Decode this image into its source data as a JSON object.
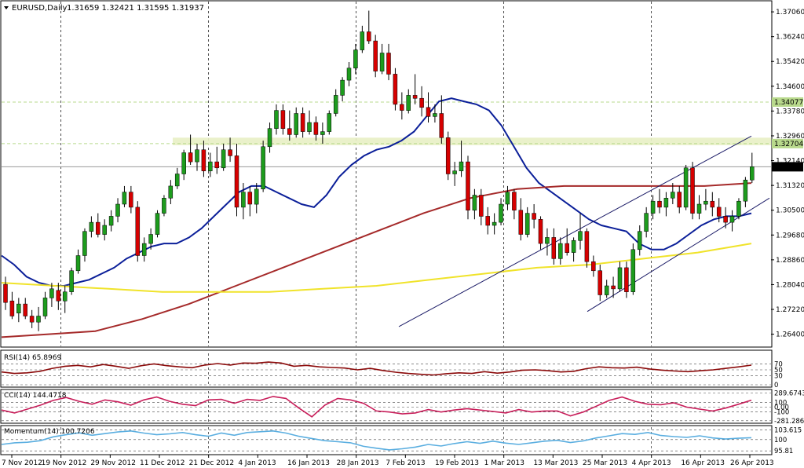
{
  "window": {
    "symbol_caption": "EURUSD,Daily",
    "ohlc_caption": "1.31659 1.32421 1.31595 1.31937"
  },
  "chart_data": [
    {
      "type": "candlestick",
      "title": "EURUSD,Daily",
      "ohlc": {
        "open": 1.31659,
        "high": 1.32421,
        "low": 1.31595,
        "close": 1.31937
      },
      "ylim": [
        1.26,
        1.374
      ],
      "y_ticks": [
        "1.37060",
        "1.36240",
        "1.35420",
        "1.34600",
        "1.33780",
        "1.32960",
        "1.32140",
        "1.31320",
        "1.30500",
        "1.29680",
        "1.28860",
        "1.28040",
        "1.27220",
        "1.26400"
      ],
      "x_ticks": [
        "7 Nov 2012",
        "19 Nov 2012",
        "29 Nov 2012",
        "11 Dec 2012",
        "21 Dec 2012",
        "4 Jan 2013",
        "16 Jan 2013",
        "28 Jan 2013",
        "7 Feb 2013",
        "19 Feb 2013",
        "1 Mar 2013",
        "13 Mar 2013",
        "25 Mar 2013",
        "4 Apr 2013",
        "16 Apr 2013",
        "26 Apr 2013"
      ],
      "price_labels": [
        {
          "text": "1.34077",
          "value": 1.34077,
          "color": "#b8d98c"
        },
        {
          "text": "1.32704",
          "value": 1.32704,
          "color": "#b8d98c"
        },
        {
          "text": "1.31937",
          "value": 1.31937,
          "color": "#000000"
        }
      ],
      "support_resistance_zone": [
        1.3265,
        1.329
      ],
      "candles": [
        [
          1.2805,
          1.283,
          1.272,
          1.2745
        ],
        [
          1.275,
          1.278,
          1.269,
          1.27
        ],
        [
          1.271,
          1.276,
          1.268,
          1.274
        ],
        [
          1.274,
          1.276,
          1.269,
          1.27
        ],
        [
          1.27,
          1.272,
          1.266,
          1.268
        ],
        [
          1.268,
          1.273,
          1.265,
          1.27
        ],
        [
          1.27,
          1.278,
          1.269,
          1.276
        ],
        [
          1.276,
          1.281,
          1.273,
          1.279
        ],
        [
          1.2785,
          1.281,
          1.272,
          1.275
        ],
        [
          1.275,
          1.28,
          1.271,
          1.278
        ],
        [
          1.278,
          1.286,
          1.277,
          1.285
        ],
        [
          1.285,
          1.292,
          1.284,
          1.29
        ],
        [
          1.29,
          1.299,
          1.288,
          1.298
        ],
        [
          1.298,
          1.303,
          1.296,
          1.301
        ],
        [
          1.301,
          1.304,
          1.296,
          1.297
        ],
        [
          1.297,
          1.302,
          1.295,
          1.3
        ],
        [
          1.3,
          1.305,
          1.298,
          1.303
        ],
        [
          1.303,
          1.309,
          1.301,
          1.307
        ],
        [
          1.307,
          1.313,
          1.306,
          1.311
        ],
        [
          1.311,
          1.313,
          1.304,
          1.306
        ],
        [
          1.306,
          1.308,
          1.288,
          1.29
        ],
        [
          1.29,
          1.296,
          1.288,
          1.294
        ],
        [
          1.294,
          1.299,
          1.292,
          1.297
        ],
        [
          1.297,
          1.305,
          1.296,
          1.304
        ],
        [
          1.304,
          1.31,
          1.303,
          1.309
        ],
        [
          1.309,
          1.315,
          1.307,
          1.313
        ],
        [
          1.313,
          1.319,
          1.312,
          1.317
        ],
        [
          1.317,
          1.325,
          1.315,
          1.324
        ],
        [
          1.324,
          1.33,
          1.32,
          1.321
        ],
        [
          1.321,
          1.327,
          1.318,
          1.325
        ],
        [
          1.325,
          1.328,
          1.316,
          1.318
        ],
        [
          1.318,
          1.324,
          1.316,
          1.321
        ],
        [
          1.321,
          1.326,
          1.317,
          1.319
        ],
        [
          1.319,
          1.327,
          1.318,
          1.325
        ],
        [
          1.325,
          1.329,
          1.321,
          1.323
        ],
        [
          1.323,
          1.327,
          1.303,
          1.306
        ],
        [
          1.306,
          1.314,
          1.302,
          1.311
        ],
        [
          1.311,
          1.313,
          1.303,
          1.307
        ],
        [
          1.307,
          1.314,
          1.304,
          1.312
        ],
        [
          1.312,
          1.328,
          1.311,
          1.326
        ],
        [
          1.326,
          1.334,
          1.324,
          1.332
        ],
        [
          1.332,
          1.34,
          1.33,
          1.338
        ],
        [
          1.338,
          1.34,
          1.33,
          1.332
        ],
        [
          1.332,
          1.338,
          1.328,
          1.33
        ],
        [
          1.33,
          1.339,
          1.329,
          1.337
        ],
        [
          1.337,
          1.339,
          1.329,
          1.331
        ],
        [
          1.331,
          1.338,
          1.33,
          1.334
        ],
        [
          1.334,
          1.336,
          1.328,
          1.33
        ],
        [
          1.33,
          1.334,
          1.327,
          1.331
        ],
        [
          1.331,
          1.338,
          1.33,
          1.337
        ],
        [
          1.337,
          1.345,
          1.336,
          1.343
        ],
        [
          1.343,
          1.349,
          1.341,
          1.348
        ],
        [
          1.348,
          1.354,
          1.346,
          1.352
        ],
        [
          1.352,
          1.36,
          1.35,
          1.358
        ],
        [
          1.358,
          1.366,
          1.357,
          1.364
        ],
        [
          1.364,
          1.371,
          1.36,
          1.361
        ],
        [
          1.361,
          1.363,
          1.349,
          1.351
        ],
        [
          1.351,
          1.36,
          1.35,
          1.357
        ],
        [
          1.357,
          1.36,
          1.348,
          1.35
        ],
        [
          1.35,
          1.352,
          1.338,
          1.34
        ],
        [
          1.34,
          1.344,
          1.335,
          1.338
        ],
        [
          1.338,
          1.345,
          1.337,
          1.343
        ],
        [
          1.343,
          1.35,
          1.34,
          1.342
        ],
        [
          1.342,
          1.346,
          1.336,
          1.339
        ],
        [
          1.339,
          1.344,
          1.334,
          1.336
        ],
        [
          1.336,
          1.34,
          1.334,
          1.337
        ],
        [
          1.337,
          1.343,
          1.327,
          1.329
        ],
        [
          1.329,
          1.331,
          1.315,
          1.317
        ],
        [
          1.317,
          1.321,
          1.313,
          1.318
        ],
        [
          1.318,
          1.328,
          1.316,
          1.321
        ],
        [
          1.321,
          1.323,
          1.302,
          1.305
        ],
        [
          1.305,
          1.312,
          1.302,
          1.31
        ],
        [
          1.31,
          1.312,
          1.3,
          1.303
        ],
        [
          1.303,
          1.306,
          1.297,
          1.3
        ],
        [
          1.3,
          1.304,
          1.297,
          1.301
        ],
        [
          1.301,
          1.309,
          1.3,
          1.307
        ],
        [
          1.307,
          1.313,
          1.305,
          1.311
        ],
        [
          1.311,
          1.312,
          1.302,
          1.305
        ],
        [
          1.305,
          1.309,
          1.295,
          1.297
        ],
        [
          1.297,
          1.306,
          1.296,
          1.304
        ],
        [
          1.304,
          1.307,
          1.299,
          1.302
        ],
        [
          1.302,
          1.303,
          1.292,
          1.294
        ],
        [
          1.294,
          1.299,
          1.29,
          1.296
        ],
        [
          1.296,
          1.299,
          1.287,
          1.289
        ],
        [
          1.289,
          1.296,
          1.287,
          1.294
        ],
        [
          1.294,
          1.299,
          1.29,
          1.291
        ],
        [
          1.291,
          1.296,
          1.288,
          1.295
        ],
        [
          1.295,
          1.304,
          1.292,
          1.298
        ],
        [
          1.298,
          1.299,
          1.286,
          1.288
        ],
        [
          1.288,
          1.29,
          1.283,
          1.285
        ],
        [
          1.285,
          1.287,
          1.275,
          1.277
        ],
        [
          1.277,
          1.282,
          1.276,
          1.28
        ],
        [
          1.28,
          1.283,
          1.276,
          1.279
        ],
        [
          1.279,
          1.288,
          1.278,
          1.286
        ],
        [
          1.286,
          1.288,
          1.276,
          1.278
        ],
        [
          1.278,
          1.294,
          1.277,
          1.292
        ],
        [
          1.292,
          1.3,
          1.29,
          1.298
        ],
        [
          1.298,
          1.306,
          1.296,
          1.304
        ],
        [
          1.304,
          1.31,
          1.302,
          1.308
        ],
        [
          1.308,
          1.312,
          1.304,
          1.306
        ],
        [
          1.306,
          1.311,
          1.303,
          1.309
        ],
        [
          1.309,
          1.314,
          1.307,
          1.311
        ],
        [
          1.311,
          1.313,
          1.304,
          1.306
        ],
        [
          1.306,
          1.32,
          1.305,
          1.319
        ],
        [
          1.319,
          1.321,
          1.302,
          1.304
        ],
        [
          1.304,
          1.31,
          1.302,
          1.307
        ],
        [
          1.307,
          1.312,
          1.305,
          1.308
        ],
        [
          1.308,
          1.311,
          1.303,
          1.306
        ],
        [
          1.306,
          1.309,
          1.301,
          1.303
        ],
        [
          1.303,
          1.306,
          1.299,
          1.301
        ],
        [
          1.301,
          1.305,
          1.298,
          1.303
        ],
        [
          1.303,
          1.309,
          1.302,
          1.308
        ],
        [
          1.308,
          1.316,
          1.306,
          1.315
        ],
        [
          1.315,
          1.324,
          1.314,
          1.3194
        ]
      ],
      "moving_averages": [
        {
          "color": "#0b1f99",
          "from": 1.29,
          "path": [
            1.29,
            1.287,
            1.283,
            1.281,
            1.28,
            1.28,
            1.281,
            1.282,
            1.284,
            1.286,
            1.289,
            1.291,
            1.293,
            1.294,
            1.294,
            1.296,
            1.299,
            1.303,
            1.307,
            1.311,
            1.313,
            1.313,
            1.311,
            1.309,
            1.307,
            1.306,
            1.31,
            1.316,
            1.32,
            1.323,
            1.325,
            1.326,
            1.328,
            1.331,
            1.336,
            1.341,
            1.342,
            1.341,
            1.34,
            1.338,
            1.333,
            1.326,
            1.319,
            1.314,
            1.311,
            1.308,
            1.305,
            1.302,
            1.3,
            1.299,
            1.298,
            1.294,
            1.292,
            1.292,
            1.294,
            1.297,
            1.3,
            1.302,
            1.303,
            1.303,
            1.304
          ]
        },
        {
          "color": "#a52a2a",
          "path": [
            1.263,
            1.264,
            1.265,
            1.269,
            1.274,
            1.28,
            1.286,
            1.292,
            1.298,
            1.304,
            1.309,
            1.312,
            1.313,
            1.313,
            1.313,
            1.313,
            1.314
          ]
        },
        {
          "color": "#f0e32a",
          "path": [
            1.281,
            1.28,
            1.279,
            1.278,
            1.278,
            1.278,
            1.279,
            1.28,
            1.282,
            1.284,
            1.286,
            1.287,
            1.289,
            1.291,
            1.294
          ]
        }
      ]
    },
    {
      "type": "line",
      "title": "RSI(14) 65.8969",
      "ylim": [
        0,
        100
      ],
      "levels": [
        "70",
        "50",
        "30",
        "0"
      ],
      "series": [
        {
          "name": "RSI(14)",
          "color": "#8b0a0a",
          "values": [
            43,
            38,
            40,
            45,
            55,
            62,
            65,
            60,
            68,
            62,
            55,
            64,
            70,
            64,
            60,
            57,
            66,
            71,
            66,
            73,
            72,
            76,
            73,
            62,
            65,
            60,
            58,
            56,
            50,
            55,
            48,
            42,
            38,
            35,
            33,
            37,
            40,
            38,
            44,
            39,
            43,
            49,
            50,
            47,
            43,
            45,
            54,
            60,
            57,
            56,
            59,
            53,
            49,
            46,
            44,
            47,
            50,
            55,
            60,
            65.9
          ]
        }
      ]
    },
    {
      "type": "line",
      "title": "CCI(14) 144.4718",
      "ylim": [
        -300,
        300
      ],
      "ticks": [
        "289.6743",
        "100",
        "0.00",
        "-100",
        "-281.286"
      ],
      "series": [
        {
          "name": "CCI(14)",
          "color": "#c81e5a",
          "values": [
            -60,
            -120,
            -40,
            40,
            140,
            200,
            120,
            60,
            150,
            110,
            40,
            150,
            210,
            120,
            60,
            30,
            150,
            160,
            80,
            160,
            140,
            220,
            180,
            -20,
            -200,
            40,
            180,
            150,
            80,
            -80,
            -100,
            -140,
            -120,
            -50,
            -100,
            -60,
            -30,
            -60,
            -90,
            -120,
            -50,
            -100,
            -80,
            -80,
            -180,
            -100,
            20,
            140,
            210,
            120,
            60,
            50,
            90,
            0,
            -40,
            -80,
            -20,
            60,
            144.5
          ]
        }
      ]
    },
    {
      "type": "line",
      "title": "Momentum(14) 100.7206",
      "ylim": [
        95,
        104
      ],
      "ticks": [
        "103.615",
        "100",
        "95.81"
      ],
      "series": [
        {
          "name": "Momentum(14)",
          "color": "#5aaee0",
          "values": [
            98.2,
            98.8,
            99.0,
            99.6,
            101.0,
            101.8,
            102.5,
            101.6,
            102.2,
            102.8,
            103.2,
            102.4,
            101.8,
            102.1,
            102.6,
            101.8,
            101.2,
            102.4,
            101.6,
            102.6,
            102.9,
            103.2,
            102.4,
            101.2,
            100.4,
            99.6,
            99.2,
            98.8,
            97.5,
            96.8,
            96.2,
            96.6,
            97.2,
            98.2,
            97.6,
            98.5,
            99.2,
            98.6,
            99.4,
            98.7,
            98.2,
            98.8,
            99.4,
            99.7,
            98.9,
            99.5,
            100.6,
            101.4,
            102.2,
            101.9,
            102.6,
            101.5,
            101.1,
            100.8,
            101.4,
            100.6,
            100.2,
            100.5,
            100.7
          ]
        }
      ]
    }
  ]
}
